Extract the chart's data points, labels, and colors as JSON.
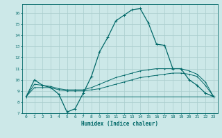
{
  "xlabel": "Humidex (Indice chaleur)",
  "ylabel": "",
  "xlim": [
    -0.5,
    23.5
  ],
  "ylim": [
    7,
    16.8
  ],
  "yticks": [
    7,
    8,
    9,
    10,
    11,
    12,
    13,
    14,
    15,
    16
  ],
  "xticks": [
    0,
    1,
    2,
    3,
    4,
    5,
    6,
    7,
    8,
    9,
    10,
    11,
    12,
    13,
    14,
    15,
    16,
    17,
    18,
    19,
    20,
    21,
    22,
    23
  ],
  "bg_color": "#cce8e8",
  "grid_color": "#aacece",
  "line_color": "#006868",
  "curves": {
    "main": {
      "x": [
        0,
        1,
        2,
        3,
        4,
        5,
        6,
        7,
        8,
        9,
        10,
        11,
        12,
        13,
        14,
        15,
        16,
        17,
        18,
        19,
        20,
        21,
        22,
        23
      ],
      "y": [
        8.5,
        10.0,
        9.5,
        9.3,
        8.7,
        7.1,
        7.4,
        8.8,
        10.3,
        12.5,
        13.8,
        15.3,
        15.8,
        16.3,
        16.4,
        15.1,
        13.2,
        13.1,
        11.0,
        11.0,
        10.0,
        9.5,
        8.8,
        8.5
      ]
    },
    "upper": {
      "x": [
        0,
        1,
        2,
        3,
        4,
        5,
        6,
        7,
        8,
        9,
        10,
        11,
        12,
        13,
        14,
        15,
        16,
        17,
        18,
        19,
        20,
        21,
        22,
        23
      ],
      "y": [
        8.5,
        9.6,
        9.5,
        9.4,
        9.2,
        9.1,
        9.1,
        9.1,
        9.3,
        9.6,
        9.9,
        10.2,
        10.4,
        10.6,
        10.8,
        10.9,
        11.0,
        11.0,
        11.0,
        11.0,
        10.8,
        10.5,
        9.8,
        8.5
      ]
    },
    "lower": {
      "x": [
        0,
        1,
        2,
        3,
        4,
        5,
        6,
        7,
        8,
        9,
        10,
        11,
        12,
        13,
        14,
        15,
        16,
        17,
        18,
        19,
        20,
        21,
        22,
        23
      ],
      "y": [
        8.5,
        9.3,
        9.3,
        9.3,
        9.1,
        9.0,
        9.0,
        9.0,
        9.1,
        9.2,
        9.4,
        9.6,
        9.8,
        10.0,
        10.2,
        10.3,
        10.4,
        10.5,
        10.6,
        10.6,
        10.5,
        10.3,
        9.5,
        8.5
      ]
    },
    "flat": {
      "x": [
        0,
        23
      ],
      "y": [
        8.5,
        8.5
      ]
    }
  }
}
